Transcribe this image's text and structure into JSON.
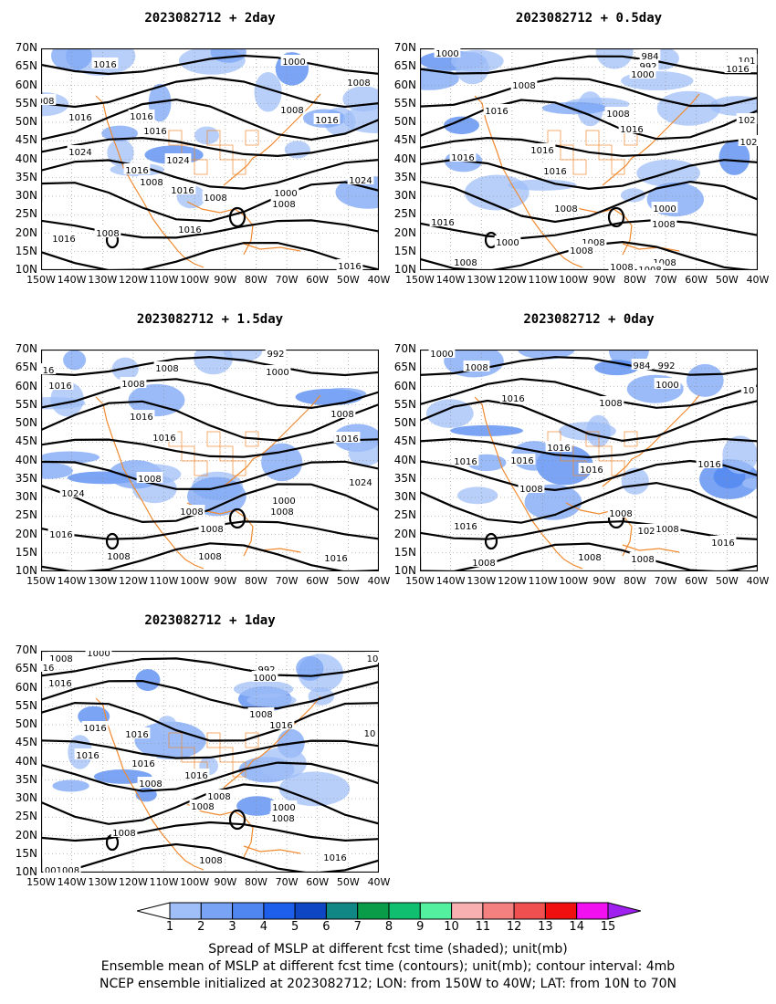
{
  "panels": [
    {
      "title": "2023082712  +  2day",
      "labels": [
        [
          "1016",
          115,
          70
        ],
        [
          "1000",
          322,
          67
        ],
        [
          "1008",
          393,
          90
        ],
        [
          "008",
          50,
          110
        ],
        [
          "1016",
          88,
          128
        ],
        [
          "1016",
          155,
          127
        ],
        [
          "1008",
          320,
          120
        ],
        [
          "1016",
          358,
          131
        ],
        [
          "1016",
          170,
          143
        ],
        [
          "1024",
          88,
          166
        ],
        [
          "1024",
          195,
          175
        ],
        [
          "1016",
          150,
          186
        ],
        [
          "1016",
          200,
          208
        ],
        [
          "1008",
          166,
          199
        ],
        [
          "1008",
          236,
          216
        ],
        [
          "1000",
          313,
          211
        ],
        [
          "1008",
          311,
          223
        ],
        [
          "1024",
          395,
          197
        ],
        [
          "1016",
          70,
          261
        ],
        [
          "1008",
          118,
          255
        ],
        [
          "1016",
          208,
          251
        ],
        [
          "1016",
          383,
          291
        ]
      ]
    },
    {
      "title": "2023082712  +  0.5day",
      "labels": [
        [
          "1000",
          490,
          58
        ],
        [
          "984",
          712,
          61
        ],
        [
          "992",
          710,
          72
        ],
        [
          "1000",
          704,
          81
        ],
        [
          "101",
          818,
          66
        ],
        [
          "1016",
          808,
          75
        ],
        [
          "1008",
          574,
          93
        ],
        [
          "1016",
          544,
          121
        ],
        [
          "1008",
          677,
          124
        ],
        [
          "1016",
          692,
          141
        ],
        [
          "102",
          818,
          131
        ],
        [
          "102",
          820,
          155
        ],
        [
          "1016",
          594,
          164
        ],
        [
          "1016",
          507,
          172
        ],
        [
          "1016",
          608,
          187
        ],
        [
          "1008",
          620,
          228
        ],
        [
          "1000",
          728,
          228
        ],
        [
          "1008",
          727,
          245
        ],
        [
          "1016",
          485,
          243
        ],
        [
          "1000",
          556,
          265
        ],
        [
          "1008",
          650,
          265
        ],
        [
          "1008",
          637,
          274
        ],
        [
          "1008",
          510,
          287
        ],
        [
          "1008",
          728,
          287
        ],
        [
          "1008",
          681,
          292
        ],
        [
          "1008",
          712,
          295
        ]
      ]
    },
    {
      "title": "2023082712  +  1.5day",
      "labels": [
        [
          "992",
          302,
          387
        ],
        [
          "1000",
          304,
          407
        ],
        [
          "1008",
          183,
          403
        ],
        [
          "16",
          53,
          405
        ],
        [
          "1008",
          146,
          420
        ],
        [
          "1016",
          66,
          422
        ],
        [
          "1016",
          155,
          456
        ],
        [
          "1016",
          180,
          479
        ],
        [
          "1008",
          375,
          453
        ],
        [
          "1016",
          380,
          480
        ],
        [
          "1008",
          164,
          524
        ],
        [
          "1024",
          80,
          540
        ],
        [
          "1024",
          395,
          528
        ],
        [
          "1000",
          311,
          548
        ],
        [
          "1008",
          309,
          560
        ],
        [
          "1008",
          210,
          560
        ],
        [
          "1008",
          232,
          579
        ],
        [
          "1016",
          67,
          585
        ],
        [
          "1008",
          130,
          609
        ],
        [
          "1008",
          230,
          609
        ],
        [
          "1016",
          368,
          611
        ]
      ]
    },
    {
      "title": "2023082712  +  0day",
      "labels": [
        [
          "1000",
          484,
          387
        ],
        [
          "1008",
          522,
          402
        ],
        [
          "984",
          703,
          400
        ],
        [
          "992",
          730,
          400
        ],
        [
          "1000",
          731,
          421
        ],
        [
          "10",
          820,
          427
        ],
        [
          "1016",
          562,
          436
        ],
        [
          "1008",
          669,
          441
        ],
        [
          "1016",
          612,
          490
        ],
        [
          "1016",
          510,
          505
        ],
        [
          "1016",
          572,
          504
        ],
        [
          "1016",
          648,
          514
        ],
        [
          "1016",
          777,
          508
        ],
        [
          "1008",
          582,
          535
        ],
        [
          "1016",
          510,
          576
        ],
        [
          "1008",
          680,
          562
        ],
        [
          "1008",
          731,
          579
        ],
        [
          "102",
          708,
          581
        ],
        [
          "1016",
          792,
          594
        ],
        [
          "1008",
          530,
          616
        ],
        [
          "1008",
          646,
          610
        ],
        [
          "1008",
          704,
          612
        ]
      ]
    },
    {
      "title": "2023082712  +  1day",
      "labels": [
        [
          "1008",
          67,
          721
        ],
        [
          "1000",
          108,
          715
        ],
        [
          "16",
          53,
          731
        ],
        [
          "1016",
          66,
          748
        ],
        [
          "992",
          292,
          733
        ],
        [
          "1000",
          290,
          742
        ],
        [
          "10",
          408,
          721
        ],
        [
          "1008",
          286,
          782
        ],
        [
          "1016",
          308,
          794
        ],
        [
          "1016",
          104,
          797
        ],
        [
          "1016",
          150,
          804
        ],
        [
          "10",
          405,
          803
        ],
        [
          "1016",
          96,
          827
        ],
        [
          "1016",
          157,
          836
        ],
        [
          "1016",
          215,
          849
        ],
        [
          "1008",
          165,
          858
        ],
        [
          "1008",
          240,
          872
        ],
        [
          "1008",
          222,
          883
        ],
        [
          "1000",
          311,
          884
        ],
        [
          "1008",
          310,
          896
        ],
        [
          "1008",
          136,
          912
        ],
        [
          "1008",
          231,
          942
        ],
        [
          "1016",
          367,
          939
        ],
        [
          "001008",
          68,
          953
        ]
      ]
    }
  ],
  "lat_ticks": [
    "10N",
    "15N",
    "20N",
    "25N",
    "30N",
    "35N",
    "40N",
    "45N",
    "50N",
    "55N",
    "60N",
    "65N",
    "70N"
  ],
  "lon_ticks": [
    "150W",
    "140W",
    "130W",
    "120W",
    "110W",
    "100W",
    "90W",
    "80W",
    "70W",
    "60W",
    "50W",
    "40W"
  ],
  "colorbar": {
    "values": [
      "1",
      "2",
      "3",
      "4",
      "5",
      "6",
      "7",
      "8",
      "9",
      "10",
      "11",
      "12",
      "13",
      "14",
      "15"
    ],
    "colors": [
      "#ffffff",
      "#a0bff8",
      "#79a4f5",
      "#4f86f0",
      "#1d5eeb",
      "#0f46c4",
      "#108785",
      "#0a9c48",
      "#10c070",
      "#53f0a0",
      "#f8b0b0",
      "#f58080",
      "#f05050",
      "#f01010",
      "#f010f0",
      "#a020f0"
    ]
  },
  "footer": [
    "Spread of MSLP at different fcst time (shaded); unit(mb)",
    "Ensemble mean of MSLP at different fcst time (contours); unit(mb); contour interval: 4mb",
    "NCEP ensemble initialized at 2023082712; LON: from 150W to 40W; LAT: from 10N to 70N"
  ]
}
